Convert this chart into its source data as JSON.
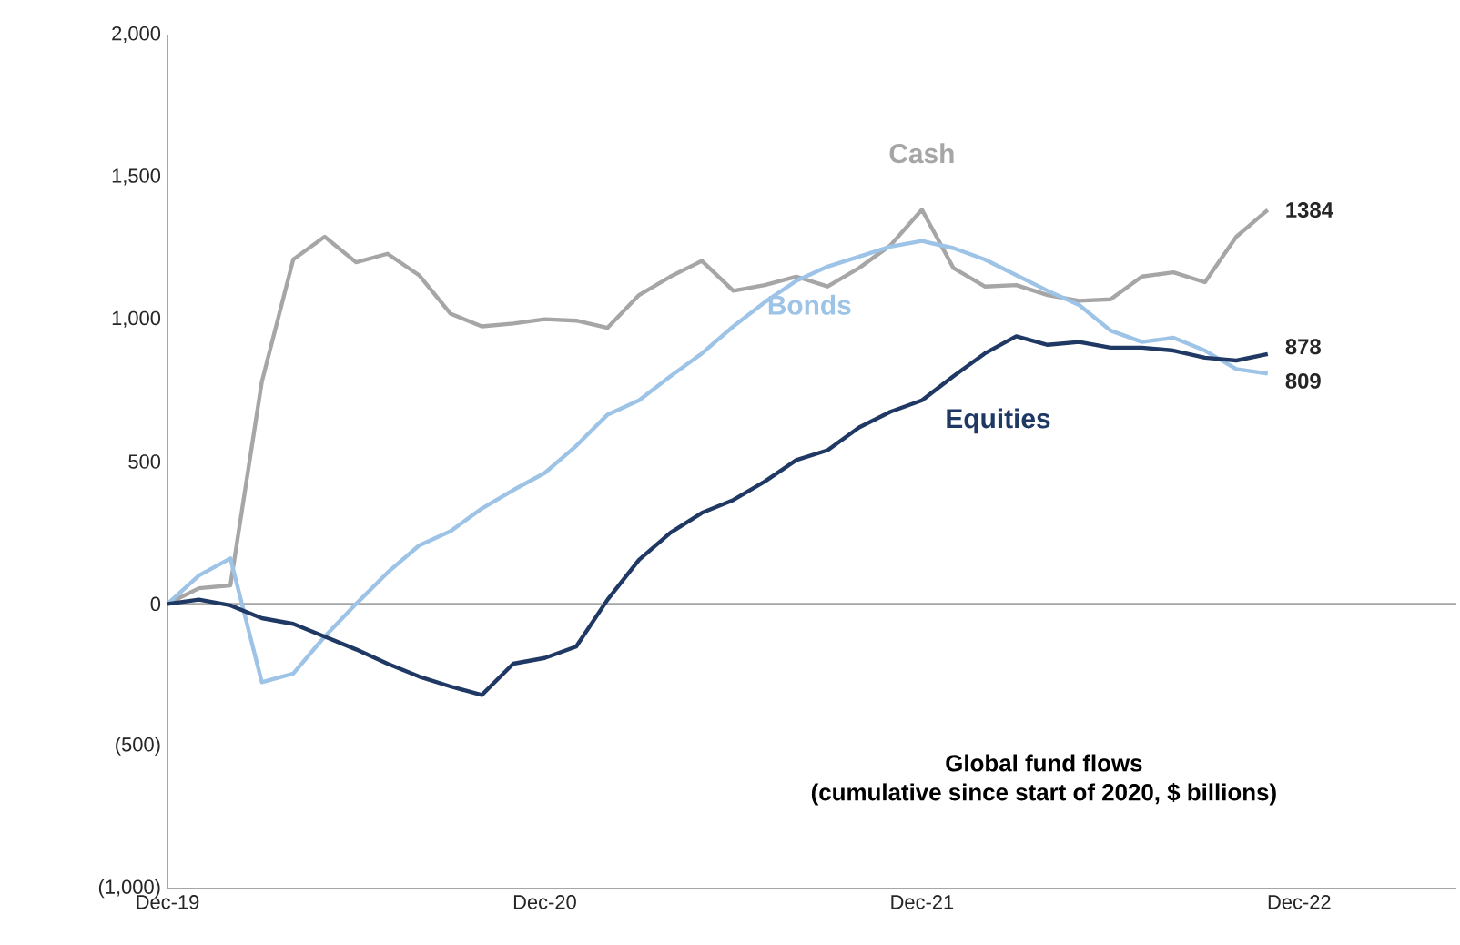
{
  "chart_data": {
    "type": "line",
    "title": "Global fund flows",
    "subtitle": "(cumulative since start of 2020, $ billions)",
    "x": [
      "2019-12",
      "2020-01",
      "2020-02",
      "2020-03",
      "2020-04",
      "2020-05",
      "2020-06",
      "2020-07",
      "2020-08",
      "2020-09",
      "2020-10",
      "2020-11",
      "2020-12",
      "2021-01",
      "2021-02",
      "2021-03",
      "2021-04",
      "2021-05",
      "2021-06",
      "2021-07",
      "2021-08",
      "2021-09",
      "2021-10",
      "2021-11",
      "2021-12",
      "2022-01",
      "2022-02",
      "2022-03",
      "2022-04",
      "2022-05",
      "2022-06",
      "2022-07",
      "2022-08",
      "2022-09",
      "2022-10",
      "2022-11"
    ],
    "series": [
      {
        "name": "Cash",
        "color": "#a6a6a6",
        "values": [
          0,
          55,
          65,
          780,
          1210,
          1290,
          1200,
          1230,
          1155,
          1020,
          975,
          985,
          1000,
          995,
          970,
          1085,
          1150,
          1205,
          1100,
          1120,
          1150,
          1115,
          1180,
          1260,
          1385,
          1180,
          1115,
          1120,
          1085,
          1065,
          1070,
          1150,
          1165,
          1130,
          1290,
          1384
        ],
        "value_labels": [
          null,
          null,
          null,
          null,
          null,
          null,
          null,
          null,
          null,
          null,
          null,
          null,
          null,
          null,
          null,
          null,
          null,
          null,
          null,
          null,
          null,
          null,
          null,
          null,
          null,
          null,
          null,
          null,
          null,
          null,
          null,
          null,
          null,
          null,
          null,
          "1384"
        ]
      },
      {
        "name": "Bonds",
        "color": "#9dc3e6",
        "values": [
          0,
          100,
          160,
          -275,
          -245,
          -115,
          0,
          110,
          205,
          255,
          335,
          400,
          460,
          555,
          665,
          715,
          800,
          880,
          975,
          1060,
          1135,
          1185,
          1220,
          1255,
          1275,
          1250,
          1210,
          1155,
          1100,
          1050,
          960,
          920,
          935,
          890,
          825,
          809
        ],
        "value_labels": [
          null,
          null,
          null,
          null,
          null,
          null,
          null,
          null,
          null,
          null,
          null,
          null,
          null,
          null,
          null,
          null,
          null,
          null,
          null,
          null,
          null,
          null,
          null,
          null,
          null,
          null,
          null,
          null,
          null,
          null,
          null,
          null,
          null,
          null,
          null,
          "809"
        ]
      },
      {
        "name": "Equities",
        "color": "#1f3864",
        "values": [
          0,
          15,
          -5,
          -50,
          -70,
          -115,
          -160,
          -210,
          -255,
          -290,
          -320,
          -210,
          -190,
          -150,
          15,
          155,
          250,
          320,
          365,
          430,
          505,
          540,
          620,
          675,
          715,
          800,
          880,
          940,
          910,
          920,
          900,
          900,
          890,
          865,
          855,
          878
        ],
        "value_labels": [
          null,
          null,
          null,
          null,
          null,
          null,
          null,
          null,
          null,
          null,
          null,
          null,
          null,
          null,
          null,
          null,
          null,
          null,
          null,
          null,
          null,
          null,
          null,
          null,
          null,
          null,
          null,
          null,
          null,
          null,
          null,
          null,
          null,
          null,
          null,
          "878"
        ]
      }
    ],
    "xlim": [
      "2019-12",
      "2023-05"
    ],
    "xticks": [
      {
        "value": "2019-12",
        "label": "Dec-19"
      },
      {
        "value": "2020-12",
        "label": "Dec-20"
      },
      {
        "value": "2021-12",
        "label": "Dec-21"
      },
      {
        "value": "2022-12",
        "label": "Dec-22"
      }
    ],
    "ylim": [
      -1000,
      2000
    ],
    "yticks": [
      {
        "value": -1000,
        "label": "(1,000)"
      },
      {
        "value": -500,
        "label": "(500)"
      },
      0,
      500,
      {
        "value": 1000,
        "label": "1,000"
      },
      {
        "value": 1500,
        "label": "1,500"
      },
      {
        "value": 2000,
        "label": "2,000"
      }
    ],
    "ref_lines": [
      {
        "axis": "y",
        "value": 0,
        "color": "#a6a6a6"
      }
    ],
    "grid": false,
    "legend": false,
    "line_style": "solid",
    "marker": "none"
  }
}
